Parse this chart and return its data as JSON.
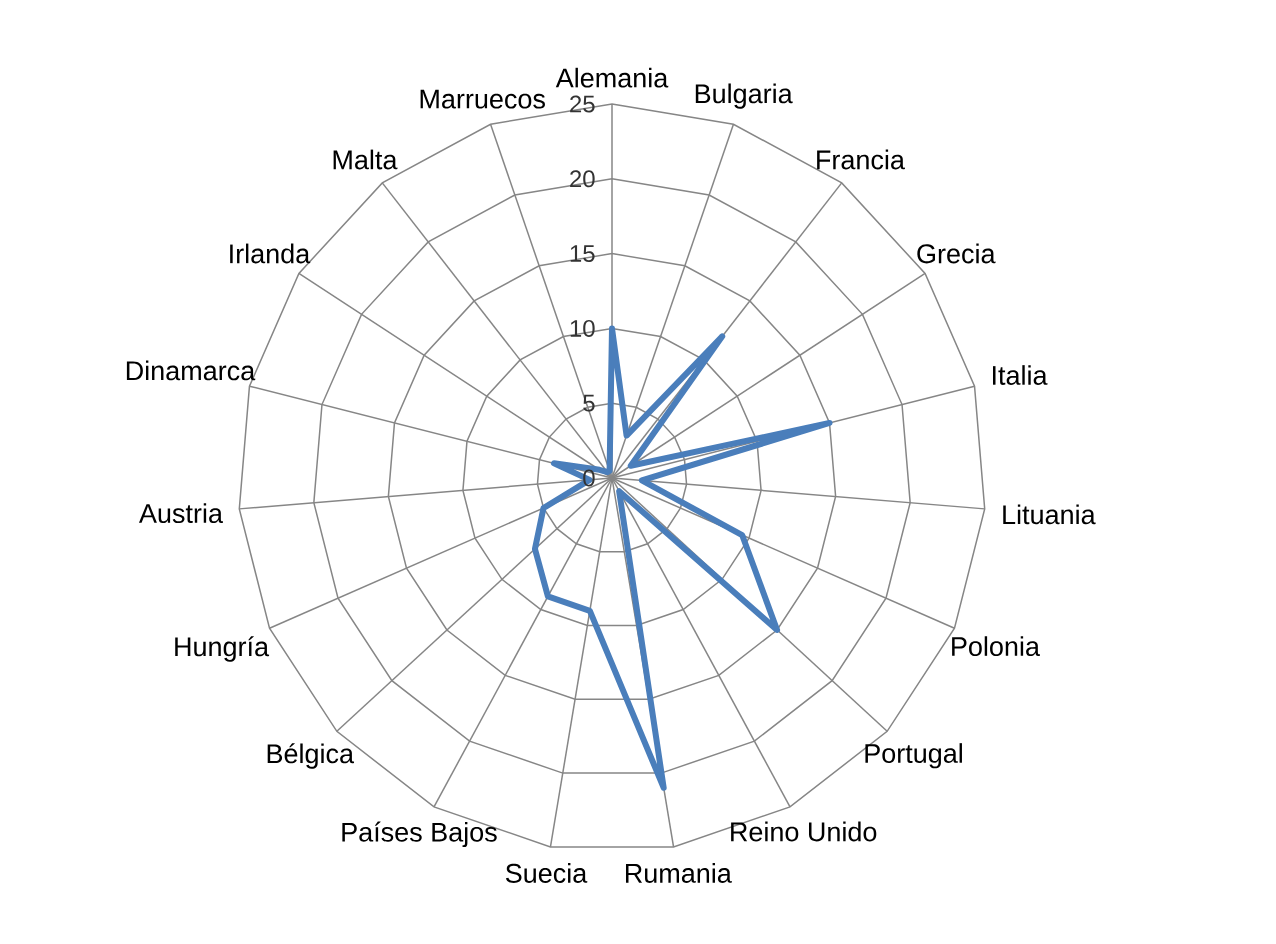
{
  "chart_data": {
    "type": "radar",
    "categories": [
      "Alemania",
      "Bulgaria",
      "Francia",
      "Grecia",
      "Italia",
      "Lituania",
      "Polonia",
      "Portugal",
      "Reino Unido",
      "Rumania",
      "Suecia",
      "Países Bajos",
      "Bélgica",
      "Hungría",
      "Austria",
      "Dinamarca",
      "Irlanda",
      "Malta",
      "Marruecos"
    ],
    "series": [
      {
        "color": "#4a7ebb",
        "values": [
          10,
          3,
          12,
          1.5,
          15,
          2,
          9.5,
          15,
          1,
          21,
          9,
          9,
          7,
          5,
          1.5,
          4,
          1,
          0.5,
          0.5
        ]
      }
    ],
    "ylim": [
      0,
      25
    ],
    "yticks": [
      0,
      5,
      10,
      15,
      20,
      25
    ],
    "grid": true
  }
}
